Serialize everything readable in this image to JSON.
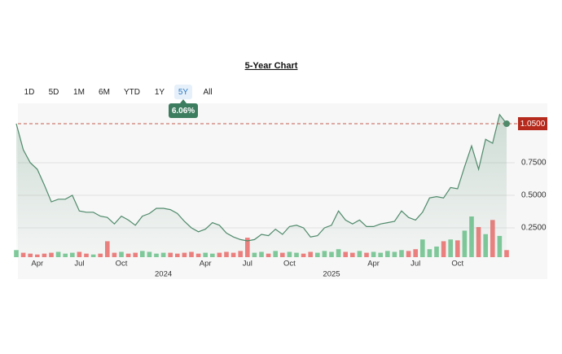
{
  "chart_data": {
    "type": "line",
    "title": "5-Year Chart",
    "ranges": [
      "1D",
      "5D",
      "1M",
      "6M",
      "YTD",
      "1Y",
      "5Y",
      "All"
    ],
    "active_range": "5Y",
    "range_change": "6.06%",
    "categories": [
      null,
      null,
      null,
      "Apr",
      null,
      null,
      null,
      null,
      null,
      "Jul",
      null,
      null,
      null,
      null,
      null,
      "Oct",
      null,
      null,
      null,
      null,
      null,
      null,
      null,
      null,
      null,
      null,
      null,
      "Apr",
      null,
      null,
      null,
      null,
      null,
      "Jul",
      null,
      null,
      null,
      null,
      null,
      "Oct",
      null,
      null,
      null,
      null,
      null,
      null,
      null,
      null,
      null,
      null,
      null,
      "Apr",
      null,
      null,
      null,
      null,
      null,
      "Jul",
      null,
      null,
      null,
      null,
      null,
      "Oct",
      null,
      null,
      null,
      null,
      null,
      null,
      null
    ],
    "year_labels": [
      null,
      null,
      null,
      null,
      null,
      null,
      null,
      null,
      null,
      null,
      null,
      null,
      null,
      null,
      null,
      null,
      null,
      null,
      null,
      null,
      null,
      "2024",
      null,
      null,
      null,
      null,
      null,
      null,
      null,
      null,
      null,
      null,
      null,
      null,
      null,
      null,
      null,
      null,
      null,
      null,
      null,
      null,
      null,
      null,
      null,
      "2025",
      null,
      null,
      null,
      null,
      null,
      null,
      null,
      null,
      null,
      null,
      null,
      null,
      null,
      null,
      null,
      null,
      null,
      null,
      null,
      null,
      null,
      null,
      null,
      null,
      null
    ],
    "series": [
      {
        "color": "#4f8a6b",
        "values": [
          1.05,
          0.85,
          0.75,
          0.7,
          0.58,
          0.45,
          0.47,
          0.47,
          0.5,
          0.38,
          0.37,
          0.37,
          0.34,
          0.33,
          0.28,
          0.34,
          0.31,
          0.27,
          0.34,
          0.36,
          0.4,
          0.4,
          0.39,
          0.36,
          0.3,
          0.25,
          0.22,
          0.24,
          0.29,
          0.27,
          0.21,
          0.18,
          0.16,
          0.15,
          0.16,
          0.2,
          0.19,
          0.24,
          0.2,
          0.26,
          0.27,
          0.25,
          0.18,
          0.19,
          0.25,
          0.27,
          0.38,
          0.31,
          0.28,
          0.31,
          0.26,
          0.26,
          0.28,
          0.29,
          0.3,
          0.38,
          0.33,
          0.31,
          0.37,
          0.48,
          0.49,
          0.48,
          0.56,
          0.55,
          0.72,
          0.88,
          0.7,
          0.93,
          0.9,
          1.12,
          1.05
        ]
      }
    ],
    "volume": {
      "up_color": "#7fc99a",
      "down_color": "#ef7f7f",
      "values": [
        8,
        5,
        4,
        3,
        4,
        5,
        6,
        4,
        5,
        6,
        4,
        3,
        4,
        18,
        5,
        6,
        4,
        5,
        7,
        6,
        4,
        5,
        5,
        4,
        5,
        6,
        4,
        5,
        4,
        5,
        6,
        5,
        7,
        22,
        5,
        6,
        4,
        7,
        5,
        6,
        5,
        4,
        6,
        5,
        7,
        6,
        9,
        6,
        5,
        7,
        5,
        6,
        5,
        7,
        6,
        8,
        7,
        9,
        20,
        9,
        12,
        18,
        20,
        19,
        30,
        46,
        34,
        26,
        42,
        24,
        8
      ]
    },
    "ylim": [
      0,
      1.2
    ],
    "yticks": [
      {
        "value": 0.25,
        "label": "0.2500"
      },
      {
        "value": 0.5,
        "label": "0.5000"
      },
      {
        "value": 0.75,
        "label": "0.7500"
      }
    ],
    "reference_line": {
      "value": 1.05,
      "label": "1.0500",
      "color": "#b52a1c"
    },
    "grid": true
  }
}
